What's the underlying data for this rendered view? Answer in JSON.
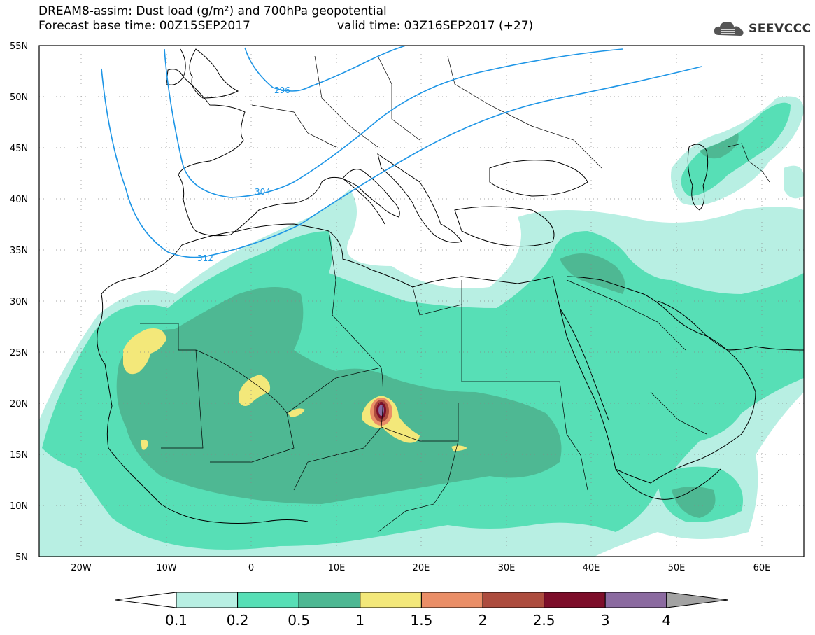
{
  "header": {
    "title_line1": "DREAM8-assim: Dust load (g/m²) and 700hPa geopotential",
    "title_line2": "Forecast base time: 00Z15SEP2017",
    "valid_time": "valid time: 03Z16SEP2017 (+27)",
    "logo_text": "SEEVCCC"
  },
  "axes": {
    "lat_labels": [
      "55N",
      "50N",
      "45N",
      "40N",
      "35N",
      "30N",
      "25N",
      "20N",
      "15N",
      "10N",
      "5N"
    ],
    "lon_labels": [
      "20W",
      "10W",
      "0",
      "10E",
      "20E",
      "30E",
      "40E",
      "50E",
      "60E"
    ]
  },
  "contours": [
    {
      "label": "296"
    },
    {
      "label": "304"
    },
    {
      "label": "312"
    }
  ],
  "colorbar": {
    "labels": [
      "0.1",
      "0.2",
      "0.5",
      "1",
      "1.5",
      "2",
      "2.5",
      "3",
      "4"
    ],
    "colors": [
      "#ffffff",
      "#b8efe3",
      "#57dfb6",
      "#4eb893",
      "#f3e87a",
      "#ea8e67",
      "#ad4c3e",
      "#7d0e2a",
      "#8b6aa0",
      "#a3a3a3"
    ]
  },
  "colors": {
    "land_outline": "#000000",
    "geopotential": "#1d95e6",
    "level_01": "#b8efe3",
    "level_02": "#57dfb6",
    "level_05": "#4eb893",
    "level_1": "#f3e87a",
    "level_15": "#ea8e67",
    "level_2": "#ad4c3e",
    "level_25": "#7d0e2a",
    "level_3": "#8b6aa0"
  }
}
